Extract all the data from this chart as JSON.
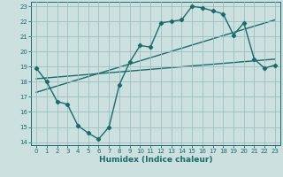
{
  "title": "",
  "xlabel": "Humidex (Indice chaleur)",
  "ylabel": "",
  "xlim": [
    -0.5,
    23.5
  ],
  "ylim": [
    13.8,
    23.3
  ],
  "xticks": [
    0,
    1,
    2,
    3,
    4,
    5,
    6,
    7,
    8,
    9,
    10,
    11,
    12,
    13,
    14,
    15,
    16,
    17,
    18,
    19,
    20,
    21,
    22,
    23
  ],
  "yticks": [
    14,
    15,
    16,
    17,
    18,
    19,
    20,
    21,
    22,
    23
  ],
  "bg_color": "#cce0e0",
  "grid_color": "#9bbfbf",
  "line_color": "#1a6b6b",
  "line1_x": [
    0,
    1,
    2,
    3,
    4,
    5,
    6,
    7,
    8,
    9,
    10,
    11,
    12,
    13,
    14,
    15,
    16,
    17,
    18,
    19,
    20,
    21,
    22,
    23
  ],
  "line1_y": [
    18.9,
    18.0,
    16.7,
    16.5,
    15.1,
    14.6,
    14.2,
    15.0,
    17.8,
    19.3,
    20.4,
    20.3,
    21.9,
    22.0,
    22.1,
    23.0,
    22.9,
    22.7,
    22.5,
    21.1,
    21.9,
    19.5,
    18.9,
    19.1
  ],
  "line2_x": [
    0,
    23
  ],
  "line2_y": [
    18.2,
    19.5
  ],
  "line3_x": [
    0,
    23
  ],
  "line3_y": [
    17.3,
    22.1
  ],
  "marker": "D",
  "markersize": 2.2,
  "linewidth": 1.0,
  "tick_fontsize": 5.0,
  "xlabel_fontsize": 6.5
}
